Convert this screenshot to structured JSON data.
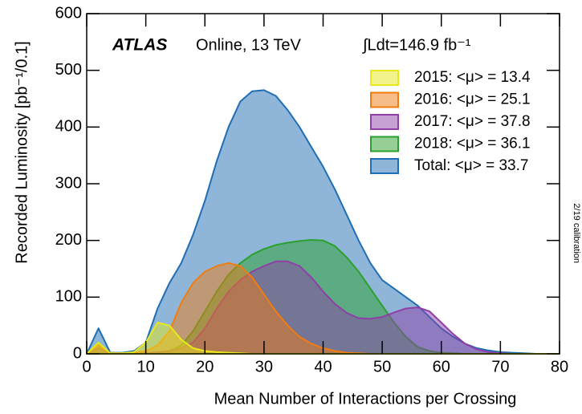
{
  "chart_data": {
    "type": "area",
    "experiment": "ATLAS",
    "subtitle": "Online, 13 TeV",
    "luminosity": "∫Ldt=146.9 fb⁻¹",
    "side_note": "2/19 calibration",
    "x_label": "Mean Number of Interactions per Crossing",
    "y_label": "Recorded Luminosity [pb⁻¹/0.1]",
    "x": [
      0,
      2,
      4,
      6,
      8,
      10,
      12,
      14,
      16,
      18,
      20,
      22,
      24,
      26,
      28,
      30,
      32,
      34,
      36,
      38,
      40,
      42,
      44,
      46,
      48,
      50,
      52,
      54,
      56,
      58,
      60,
      62,
      64,
      66,
      68,
      70,
      72,
      74,
      76,
      78,
      80
    ],
    "series": [
      {
        "name": "Total: <μ> = 33.7",
        "color": "#1f6eb4",
        "values": [
          0,
          45,
          2,
          2,
          5,
          20,
          80,
          125,
          160,
          210,
          270,
          340,
          400,
          445,
          463,
          465,
          455,
          430,
          400,
          365,
          330,
          290,
          245,
          200,
          160,
          130,
          115,
          100,
          85,
          65,
          45,
          30,
          18,
          10,
          6,
          3,
          2,
          1,
          0,
          0,
          0
        ]
      },
      {
        "name": "2018: <μ> = 36.1",
        "color": "#2ca02c",
        "values": [
          0,
          20,
          0,
          0,
          0,
          1,
          2,
          5,
          15,
          40,
          75,
          110,
          140,
          160,
          175,
          185,
          192,
          196,
          199,
          201,
          200,
          190,
          170,
          145,
          115,
          85,
          55,
          30,
          12,
          5,
          2,
          1,
          0,
          0,
          0,
          0,
          0,
          0,
          0,
          0,
          0
        ]
      },
      {
        "name": "2017: <μ> = 37.8",
        "color": "#8e3fa8",
        "values": [
          0,
          10,
          0,
          0,
          0,
          1,
          3,
          5,
          10,
          20,
          45,
          80,
          110,
          130,
          145,
          155,
          163,
          163,
          155,
          135,
          110,
          88,
          72,
          63,
          62,
          65,
          73,
          80,
          82,
          75,
          55,
          35,
          18,
          8,
          3,
          1,
          0,
          0,
          0,
          0,
          0
        ]
      },
      {
        "name": "2016: <μ> = 25.1",
        "color": "#f07c12",
        "values": [
          0,
          15,
          1,
          1,
          2,
          5,
          15,
          40,
          90,
          125,
          145,
          155,
          160,
          155,
          135,
          105,
          75,
          50,
          30,
          18,
          10,
          5,
          2,
          1,
          0,
          0,
          0,
          0,
          0,
          0,
          0,
          0,
          0,
          0,
          0,
          0,
          0,
          0,
          0,
          0,
          0
        ]
      },
      {
        "name": "2015: <μ> = 13.4",
        "color": "#e8e81a",
        "values": [
          0,
          20,
          1,
          1,
          3,
          20,
          55,
          50,
          25,
          10,
          5,
          3,
          2,
          1,
          0,
          0,
          0,
          0,
          0,
          0,
          0,
          0,
          0,
          0,
          0,
          0,
          0,
          0,
          0,
          0,
          0,
          0,
          0,
          0,
          0,
          0,
          0,
          0,
          0,
          0,
          0
        ]
      }
    ],
    "legend_order": [
      4,
      3,
      2,
      1,
      0
    ],
    "xlim": [
      0,
      80
    ],
    "xticks": [
      0,
      10,
      20,
      30,
      40,
      50,
      60,
      70,
      80
    ],
    "ylim": [
      0,
      600
    ],
    "yticks": [
      0,
      100,
      200,
      300,
      400,
      500,
      600
    ]
  }
}
